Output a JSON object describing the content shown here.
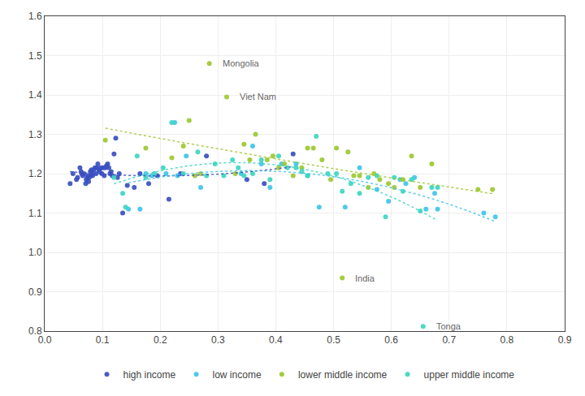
{
  "chart_data": {
    "type": "scatter",
    "xlim": [
      0,
      0.9
    ],
    "ylim": [
      0.8,
      1.6
    ],
    "xticks": [
      {
        "value": 0,
        "label": "0.0"
      },
      0.1,
      0.2,
      0.3,
      0.4,
      0.5,
      0.6,
      0.7,
      0.8,
      0.9
    ],
    "yticks": [
      0.8,
      0.9,
      {
        "value": 1,
        "label": "1.0"
      },
      1.1,
      1.2,
      1.3,
      1.4,
      1.5,
      1.6
    ],
    "grid": true,
    "legend": "bottom",
    "annotations": [
      {
        "text": "Mongolia",
        "x": 0.305,
        "y": 1.48
      },
      {
        "text": "Viet Nam",
        "x": 0.335,
        "y": 1.395
      },
      {
        "text": "India",
        "x": 0.535,
        "y": 0.935
      },
      {
        "text": "Tonga",
        "x": 0.675,
        "y": 0.812
      }
    ],
    "series": [
      {
        "name": "high income",
        "color": "#3A4FBF",
        "line_style": "dotted",
        "x": [
          0.044,
          0.049,
          0.055,
          0.057,
          0.061,
          0.063,
          0.064,
          0.066,
          0.068,
          0.071,
          0.072,
          0.074,
          0.075,
          0.076,
          0.077,
          0.079,
          0.08,
          0.081,
          0.082,
          0.083,
          0.085,
          0.087,
          0.089,
          0.09,
          0.092,
          0.094,
          0.095,
          0.097,
          0.099,
          0.101,
          0.103,
          0.105,
          0.107,
          0.109,
          0.111,
          0.113,
          0.115,
          0.117,
          0.12,
          0.123,
          0.126,
          0.129,
          0.135,
          0.143,
          0.155,
          0.165,
          0.18,
          0.195,
          0.215,
          0.235,
          0.28,
          0.35,
          0.38,
          0.43
        ],
        "values": [
          1.175,
          1.2,
          1.185,
          1.19,
          1.215,
          1.205,
          1.2,
          1.195,
          1.2,
          1.175,
          1.185,
          1.19,
          1.195,
          1.18,
          1.19,
          1.205,
          1.195,
          1.21,
          1.2,
          1.195,
          1.21,
          1.215,
          1.2,
          1.215,
          1.225,
          1.21,
          1.205,
          1.215,
          1.2,
          1.215,
          1.195,
          1.215,
          1.22,
          1.225,
          1.215,
          1.2,
          1.205,
          1.195,
          1.25,
          1.29,
          1.19,
          1.2,
          1.1,
          1.17,
          1.165,
          1.2,
          1.175,
          1.195,
          1.135,
          1.2,
          1.245,
          1.185,
          1.175,
          1.25
        ],
        "trend": {
          "x": [
            0.044,
            0.0826,
            0.1212,
            0.1598,
            0.1984,
            0.237,
            0.2756,
            0.3142,
            0.3528,
            0.3914,
            0.43
          ],
          "values": [
            1.205,
            1.2003,
            1.197,
            1.195,
            1.1944,
            1.195,
            1.1969,
            1.2002,
            1.2048,
            1.2107,
            1.2179
          ]
        }
      },
      {
        "name": "low income",
        "color": "#40C4E8",
        "line_style": "dotted",
        "x": [
          0.145,
          0.165,
          0.175,
          0.185,
          0.21,
          0.225,
          0.23,
          0.245,
          0.27,
          0.34,
          0.36,
          0.375,
          0.39,
          0.41,
          0.435,
          0.455,
          0.475,
          0.52,
          0.545,
          0.575,
          0.595,
          0.615,
          0.625,
          0.64,
          0.66,
          0.675,
          0.68,
          0.76,
          0.78
        ],
        "values": [
          1.11,
          1.11,
          1.2,
          1.195,
          1.2,
          1.33,
          1.195,
          1.245,
          1.165,
          1.2,
          1.27,
          1.225,
          1.165,
          1.225,
          1.225,
          1.195,
          1.115,
          1.115,
          1.215,
          1.16,
          1.13,
          1.185,
          1.175,
          1.19,
          1.11,
          1.15,
          1.11,
          1.1,
          1.09
        ],
        "trend": {
          "x": [
            0.145,
            0.2085,
            0.272,
            0.3355,
            0.399,
            0.4625,
            0.526,
            0.5895,
            0.653,
            0.7165,
            0.78
          ],
          "values": [
            1.1769,
            1.1928,
            1.2029,
            1.2074,
            1.2061,
            1.1991,
            1.1864,
            1.1679,
            1.1438,
            1.1139,
            1.0783
          ]
        }
      },
      {
        "name": "lower middle income",
        "color": "#9DC830",
        "line_style": "dotted",
        "x": [
          0.105,
          0.175,
          0.22,
          0.24,
          0.25,
          0.26,
          0.27,
          0.285,
          0.315,
          0.33,
          0.345,
          0.355,
          0.365,
          0.385,
          0.395,
          0.405,
          0.415,
          0.43,
          0.445,
          0.455,
          0.465,
          0.48,
          0.495,
          0.505,
          0.515,
          0.525,
          0.535,
          0.545,
          0.56,
          0.57,
          0.58,
          0.595,
          0.605,
          0.62,
          0.635,
          0.65,
          0.67,
          0.75,
          0.775
        ],
        "values": [
          1.285,
          1.265,
          1.24,
          1.27,
          1.335,
          1.195,
          1.2,
          1.48,
          1.395,
          1.2,
          1.275,
          1.235,
          1.3,
          1.235,
          1.245,
          1.215,
          1.225,
          1.195,
          1.215,
          1.265,
          1.265,
          1.235,
          1.185,
          1.265,
          0.935,
          1.255,
          1.195,
          1.195,
          1.165,
          1.2,
          1.185,
          1.175,
          1.165,
          1.185,
          1.245,
          1.165,
          1.225,
          1.16,
          1.16
        ],
        "trend": {
          "x": [
            0.105,
            0.172,
            0.239,
            0.306,
            0.373,
            0.44,
            0.507,
            0.574,
            0.641,
            0.708,
            0.775
          ],
          "values": [
            1.3154,
            1.2971,
            1.2792,
            1.2617,
            1.2445,
            1.2277,
            1.2112,
            1.1952,
            1.1795,
            1.1642,
            1.1492
          ]
        }
      },
      {
        "name": "upper middle income",
        "color": "#3DD6C0",
        "line_style": "dotted",
        "x": [
          0.12,
          0.135,
          0.14,
          0.16,
          0.175,
          0.19,
          0.205,
          0.22,
          0.24,
          0.265,
          0.28,
          0.295,
          0.31,
          0.325,
          0.335,
          0.345,
          0.36,
          0.375,
          0.39,
          0.405,
          0.42,
          0.435,
          0.445,
          0.455,
          0.47,
          0.49,
          0.505,
          0.515,
          0.53,
          0.545,
          0.56,
          0.575,
          0.59,
          0.605,
          0.62,
          0.635,
          0.65,
          0.655,
          0.67,
          0.68
        ],
        "values": [
          1.19,
          1.15,
          1.115,
          1.245,
          1.19,
          1.2,
          1.215,
          1.33,
          1.2,
          1.255,
          1.195,
          1.225,
          1.195,
          1.235,
          1.215,
          1.195,
          1.2,
          1.235,
          1.185,
          1.245,
          1.215,
          1.215,
          1.205,
          1.195,
          1.295,
          1.2,
          1.2,
          1.155,
          1.175,
          1.15,
          1.19,
          1.195,
          1.09,
          1.19,
          1.155,
          1.185,
          1.105,
          0.812,
          1.165,
          1.165
        ],
        "trend": {
          "x": [
            0.12,
            0.176,
            0.232,
            0.288,
            0.344,
            0.4,
            0.456,
            0.512,
            0.568,
            0.624,
            0.68
          ],
          "values": [
            1.1741,
            1.1989,
            1.2161,
            1.2257,
            1.2278,
            1.2223,
            1.2092,
            1.1885,
            1.1602,
            1.1244,
            1.081
          ]
        }
      }
    ]
  }
}
